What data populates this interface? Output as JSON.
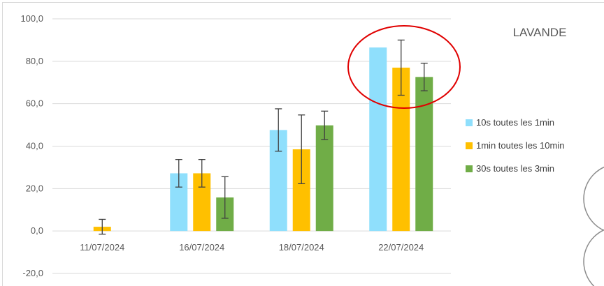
{
  "chart_data": {
    "type": "bar",
    "title": "LAVANDE",
    "xlabel": "",
    "ylabel": "",
    "categories": [
      "11/07/2024",
      "16/07/2024",
      "18/07/2024",
      "22/07/2024"
    ],
    "ylim": [
      -20,
      100
    ],
    "yticks": [
      -20,
      0,
      20,
      40,
      60,
      80,
      100
    ],
    "ytick_labels": [
      "-20,0",
      "0,0",
      "20,0",
      "40,0",
      "60,0",
      "80,0",
      "100,0"
    ],
    "grid": true,
    "legend_position": "right",
    "series": [
      {
        "name": "10s toutes les 1min",
        "color": "#8FDFFC",
        "values": [
          null,
          27.2,
          47.6,
          86.5
        ],
        "errors": [
          null,
          6.5,
          10.0,
          null
        ]
      },
      {
        "name": "1min toutes les 10min",
        "color": "#FFC000",
        "values": [
          2.0,
          27.2,
          38.5,
          77.0
        ],
        "errors": [
          3.5,
          6.5,
          16.2,
          13.0
        ]
      },
      {
        "name": "30s toutes les 3min",
        "color": "#70AD47",
        "values": [
          null,
          15.8,
          49.8,
          72.6
        ],
        "errors": [
          null,
          9.8,
          6.7,
          6.5
        ]
      }
    ],
    "annotations": [
      {
        "type": "ellipse",
        "color": "#E00000",
        "target_category": "22/07/2024"
      }
    ]
  }
}
